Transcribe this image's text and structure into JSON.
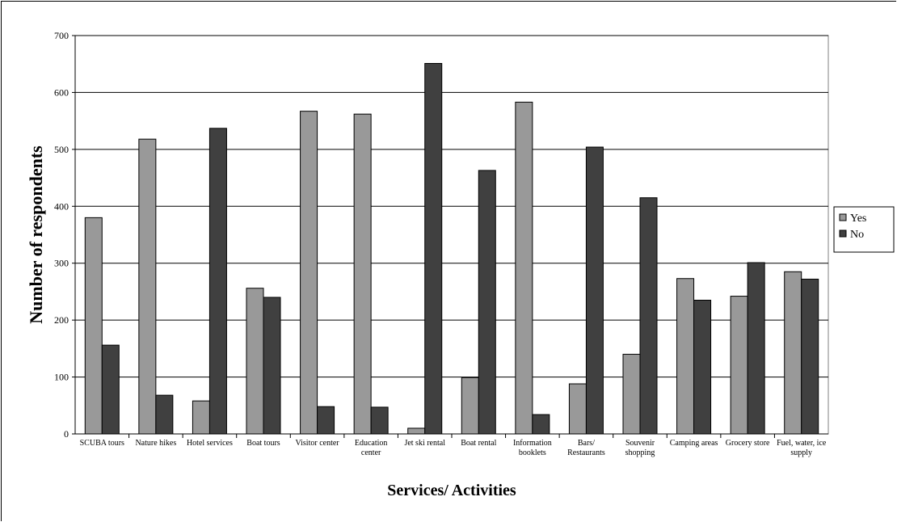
{
  "chart_data": {
    "type": "bar",
    "title": "",
    "xlabel": "Services/ Activities",
    "ylabel": "Number of respondents",
    "ylim": [
      0,
      700
    ],
    "yticks": [
      0,
      100,
      200,
      300,
      400,
      500,
      600,
      700
    ],
    "grid": true,
    "legend_position": "right",
    "categories": [
      [
        "SCUBA tours"
      ],
      [
        "Nature hikes"
      ],
      [
        "Hotel services"
      ],
      [
        "Boat tours"
      ],
      [
        "Visitor center"
      ],
      [
        "Education",
        "center"
      ],
      [
        "Jet ski rental"
      ],
      [
        "Boat rental"
      ],
      [
        "Information",
        "booklets"
      ],
      [
        "Bars/",
        "Restaurants"
      ],
      [
        "Souvenir",
        "shopping"
      ],
      [
        "Camping areas"
      ],
      [
        "Grocery store"
      ],
      [
        "Fuel, water, ice",
        "supply"
      ]
    ],
    "series": [
      {
        "name": "Yes",
        "color": "#999999",
        "values": [
          380,
          518,
          58,
          256,
          567,
          562,
          10,
          99,
          583,
          88,
          140,
          273,
          242,
          285
        ]
      },
      {
        "name": "No",
        "color": "#404040",
        "values": [
          156,
          68,
          537,
          240,
          48,
          47,
          651,
          463,
          34,
          504,
          415,
          235,
          301,
          272
        ]
      }
    ]
  }
}
